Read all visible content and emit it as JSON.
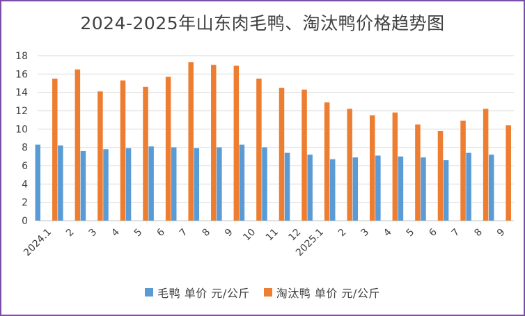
{
  "colors": {
    "series1": "#5b9bd5",
    "series2": "#ed7d31",
    "grid": "#d9d9d9",
    "text": "#404040",
    "border": "#7b4fa8"
  },
  "chart_data": {
    "type": "bar",
    "title": "2024-2025年山东肉毛鸭、淘汰鸭价格趋势图",
    "xlabel": "",
    "ylabel": "",
    "ylim": [
      0,
      18
    ],
    "yticks": [
      0,
      2,
      4,
      6,
      8,
      10,
      12,
      14,
      16,
      18
    ],
    "grid": true,
    "legend_position": "bottom",
    "categories": [
      "2024.1",
      "2",
      "3",
      "4",
      "5",
      "6",
      "7",
      "8",
      "9",
      "10",
      "11",
      "12",
      "2025.1",
      "2",
      "3",
      "4",
      "5",
      "6",
      "7",
      "8",
      "9"
    ],
    "series": [
      {
        "name": "毛鸭 单价 元/公斤",
        "values": [
          8.3,
          8.2,
          7.6,
          7.8,
          7.9,
          8.1,
          8.0,
          7.9,
          8.0,
          8.3,
          8.0,
          7.4,
          7.2,
          6.7,
          6.9,
          7.1,
          7.0,
          6.9,
          6.6,
          7.4,
          7.2
        ]
      },
      {
        "name": "淘汰鸭 单价 元/公斤",
        "values": [
          15.5,
          16.5,
          14.1,
          15.3,
          14.6,
          15.7,
          17.3,
          17.0,
          16.9,
          15.5,
          14.5,
          14.3,
          12.9,
          12.2,
          11.5,
          11.8,
          10.5,
          9.8,
          10.9,
          12.2,
          10.4
        ]
      }
    ]
  }
}
